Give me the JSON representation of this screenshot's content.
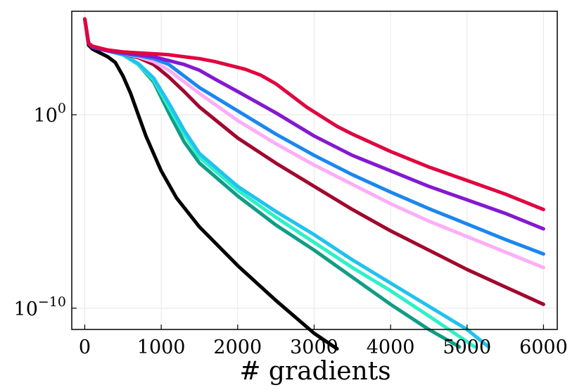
{
  "chart_data": {
    "type": "line",
    "title": "",
    "xlabel": "# gradients",
    "ylabel": "",
    "x_ticks": [
      0,
      1000,
      2000,
      3000,
      4000,
      5000,
      6000
    ],
    "x_tick_labels": [
      "0",
      "1000",
      "2000",
      "3000",
      "4000",
      "5000",
      "6000"
    ],
    "y_ticks": [
      {
        "exp": 0,
        "base": "10",
        "exp_label": "0"
      },
      {
        "exp": -10,
        "base": "10",
        "exp_label": "−10"
      }
    ],
    "yscale": "log10",
    "xlim": [
      -170,
      6180
    ],
    "ylim_log10": [
      -11.1,
      5.35
    ],
    "grid": true,
    "legend": "none",
    "series": [
      {
        "name": "black",
        "color": "#000000",
        "x": [
          0,
          50,
          100,
          200,
          300,
          400,
          500,
          600,
          700,
          800,
          1000,
          1200,
          1500,
          2000,
          2500,
          3000,
          3300
        ],
        "log10_y": [
          4.95,
          3.6,
          3.4,
          3.2,
          3.0,
          2.7,
          2.0,
          1.1,
          0.0,
          -1.1,
          -2.9,
          -4.3,
          -5.8,
          -7.8,
          -9.6,
          -11.3,
          -12.1
        ]
      },
      {
        "name": "teal",
        "color": "#119c86",
        "x": [
          0,
          50,
          100,
          300,
          500,
          700,
          900,
          1100,
          1300,
          1500,
          2000,
          2500,
          3000,
          3500,
          4000,
          4500,
          4900
        ],
        "log10_y": [
          4.95,
          3.7,
          3.5,
          3.3,
          3.1,
          2.6,
          1.7,
          0.1,
          -1.4,
          -2.5,
          -4.2,
          -5.7,
          -7.0,
          -8.4,
          -9.8,
          -11.1,
          -12.0
        ]
      },
      {
        "name": "aquamarine",
        "color": "#2ef0c8",
        "x": [
          0,
          50,
          100,
          300,
          500,
          700,
          900,
          1100,
          1300,
          1500,
          2000,
          2500,
          3000,
          3500,
          4000,
          4500,
          5100
        ],
        "log10_y": [
          4.95,
          3.7,
          3.5,
          3.3,
          3.1,
          2.6,
          1.8,
          0.4,
          -1.0,
          -2.2,
          -3.9,
          -5.3,
          -6.6,
          -7.9,
          -9.1,
          -10.4,
          -12.0
        ]
      },
      {
        "name": "sky-blue",
        "color": "#21c2ee",
        "x": [
          0,
          50,
          100,
          300,
          500,
          700,
          900,
          1100,
          1300,
          1500,
          2000,
          2500,
          3000,
          3500,
          4000,
          4500,
          5000,
          5280
        ],
        "log10_y": [
          4.95,
          3.7,
          3.5,
          3.3,
          3.1,
          2.65,
          1.9,
          0.6,
          -0.8,
          -2.0,
          -3.7,
          -5.0,
          -6.2,
          -7.5,
          -8.7,
          -9.9,
          -11.1,
          -12.0
        ]
      },
      {
        "name": "crimson",
        "color": "#a1082e",
        "x": [
          0,
          50,
          100,
          300,
          500,
          700,
          900,
          1100,
          1300,
          1500,
          2000,
          2500,
          3000,
          3500,
          4000,
          4500,
          5000,
          5500,
          6000
        ],
        "log10_y": [
          4.95,
          3.7,
          3.5,
          3.3,
          3.15,
          2.95,
          2.6,
          1.95,
          1.2,
          0.4,
          -1.2,
          -2.5,
          -3.7,
          -4.9,
          -6.0,
          -7.0,
          -8.0,
          -8.9,
          -9.8
        ]
      },
      {
        "name": "pink",
        "color": "#fbaef7",
        "x": [
          0,
          50,
          100,
          300,
          500,
          700,
          900,
          1100,
          1300,
          1500,
          2000,
          2500,
          3000,
          3500,
          4000,
          4500,
          5000,
          5500,
          6000
        ],
        "log10_y": [
          4.95,
          3.7,
          3.5,
          3.3,
          3.15,
          3.0,
          2.75,
          2.3,
          1.7,
          1.1,
          -0.3,
          -1.5,
          -2.6,
          -3.6,
          -4.6,
          -5.5,
          -6.3,
          -7.1,
          -7.9
        ]
      },
      {
        "name": "blue",
        "color": "#1b87f0",
        "x": [
          0,
          50,
          100,
          300,
          500,
          700,
          900,
          1100,
          1300,
          1500,
          2000,
          2500,
          3000,
          3500,
          4000,
          4500,
          5000,
          5500,
          6000
        ],
        "log10_y": [
          4.95,
          3.7,
          3.5,
          3.3,
          3.15,
          3.05,
          2.9,
          2.6,
          2.0,
          1.4,
          0.2,
          -1.0,
          -2.1,
          -3.1,
          -4.0,
          -4.85,
          -5.65,
          -6.45,
          -7.2
        ]
      },
      {
        "name": "purple",
        "color": "#8419d0",
        "x": [
          0,
          50,
          100,
          300,
          500,
          700,
          900,
          1100,
          1300,
          1500,
          1700,
          2000,
          2500,
          3000,
          3500,
          4000,
          4500,
          5000,
          5500,
          6000
        ],
        "log10_y": [
          4.95,
          3.7,
          3.5,
          3.3,
          3.2,
          3.1,
          3.0,
          2.8,
          2.6,
          2.3,
          1.85,
          1.2,
          0.1,
          -1.1,
          -2.1,
          -2.9,
          -3.7,
          -4.4,
          -5.1,
          -5.9
        ]
      },
      {
        "name": "red",
        "color": "#e0063f",
        "x": [
          0,
          50,
          100,
          300,
          500,
          700,
          900,
          1100,
          1300,
          1500,
          1700,
          1900,
          2100,
          2300,
          2500,
          2700,
          2900,
          3100,
          3300,
          3500,
          4000,
          4500,
          5000,
          5500,
          6000
        ],
        "log10_y": [
          4.95,
          3.7,
          3.55,
          3.35,
          3.25,
          3.2,
          3.15,
          3.1,
          3.0,
          2.9,
          2.75,
          2.55,
          2.35,
          2.05,
          1.6,
          1.0,
          0.4,
          -0.1,
          -0.6,
          -1.0,
          -1.9,
          -2.7,
          -3.4,
          -4.1,
          -4.9
        ]
      }
    ]
  }
}
